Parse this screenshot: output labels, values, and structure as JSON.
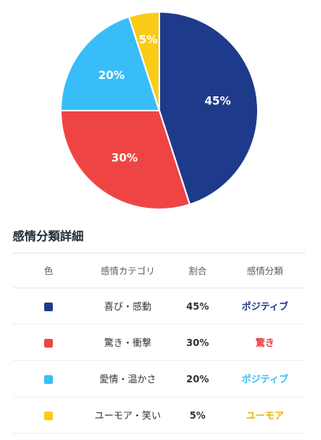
{
  "chart_data": {
    "type": "pie",
    "slices": [
      {
        "label": "喜び・感動",
        "value": 45,
        "display": "45%",
        "color": "#1e3a8a"
      },
      {
        "label": "驚き・衝撃",
        "value": 30,
        "display": "30%",
        "color": "#ef4444"
      },
      {
        "label": "愛情・温かさ",
        "value": 20,
        "display": "20%",
        "color": "#38bdf8"
      },
      {
        "label": "ユーモア・笑い",
        "value": 5,
        "display": "5%",
        "color": "#facc15"
      }
    ],
    "start_angle": "top",
    "direction": "clockwise"
  },
  "table": {
    "title": "感情分類詳細",
    "headers": {
      "color": "色",
      "category": "感情カテゴリ",
      "ratio": "割合",
      "classification": "感情分類"
    },
    "rows": [
      {
        "color": "#1e3a8a",
        "category": "喜び・感動",
        "ratio": "45%",
        "classification": "ポジティブ",
        "class_color": "#1e3a8a"
      },
      {
        "color": "#ef4444",
        "category": "驚き・衝撃",
        "ratio": "30%",
        "classification": "驚き",
        "class_color": "#ef4444"
      },
      {
        "color": "#38bdf8",
        "category": "愛情・温かさ",
        "ratio": "20%",
        "classification": "ポジティブ",
        "class_color": "#38bdf8"
      },
      {
        "color": "#facc15",
        "category": "ユーモア・笑い",
        "ratio": "5%",
        "classification": "ユーモア",
        "class_color": "#eab308"
      }
    ]
  }
}
